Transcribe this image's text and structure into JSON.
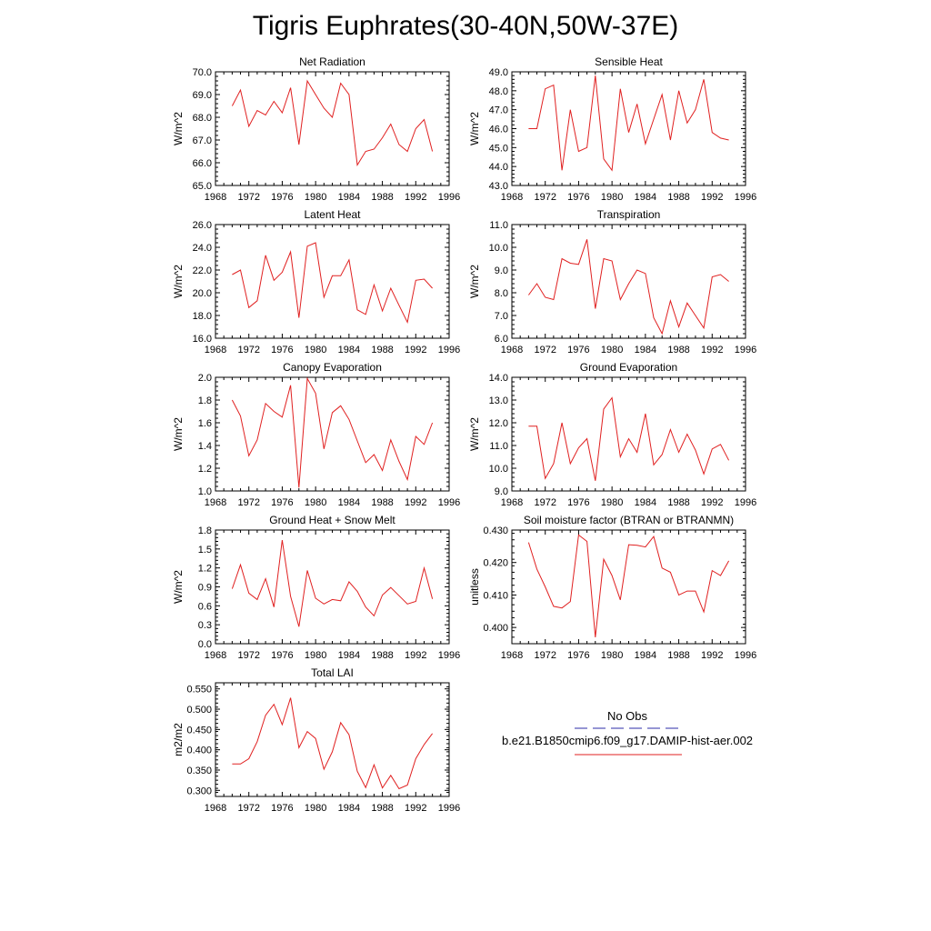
{
  "title": "Tigris Euphrates(30-40N,50W-37E)",
  "legend": {
    "entries": [
      {
        "label": "No Obs",
        "color": "#2e2ea8",
        "dashed": true
      },
      {
        "label": "b.e21.B1850cmip6.f09_g17.DAMIP-hist-aer.002",
        "color": "#e02020",
        "dashed": false
      }
    ]
  },
  "chart_data": [
    {
      "type": "line",
      "title": "Net Radiation",
      "xlabel": "",
      "ylabel": "W/m^2",
      "xlim": [
        1968,
        1996
      ],
      "ylim": [
        65.0,
        70.0
      ],
      "yticks": [
        65.0,
        66.0,
        67.0,
        68.0,
        69.0,
        70.0
      ],
      "ydec": 1,
      "x": [
        1970,
        1971,
        1972,
        1973,
        1974,
        1975,
        1976,
        1977,
        1978,
        1979,
        1980,
        1981,
        1982,
        1983,
        1984,
        1985,
        1986,
        1987,
        1988,
        1989,
        1990,
        1991,
        1992,
        1993,
        1994
      ],
      "series": [
        {
          "color": "#e02020",
          "values": [
            68.5,
            69.2,
            67.6,
            68.3,
            68.1,
            68.7,
            68.2,
            69.3,
            66.8,
            69.6,
            69.0,
            68.4,
            68.0,
            69.5,
            69.0,
            65.9,
            66.5,
            66.6,
            67.1,
            67.7,
            66.8,
            66.5,
            67.5,
            67.9,
            66.5
          ]
        }
      ]
    },
    {
      "type": "line",
      "title": "Sensible Heat",
      "xlabel": "",
      "ylabel": "W/m^2",
      "xlim": [
        1968,
        1996
      ],
      "ylim": [
        43.0,
        49.0
      ],
      "yticks": [
        43.0,
        44.0,
        45.0,
        46.0,
        47.0,
        48.0,
        49.0
      ],
      "ydec": 1,
      "x": [
        1970,
        1971,
        1972,
        1973,
        1974,
        1975,
        1976,
        1977,
        1978,
        1979,
        1980,
        1981,
        1982,
        1983,
        1984,
        1985,
        1986,
        1987,
        1988,
        1989,
        1990,
        1991,
        1992,
        1993,
        1994
      ],
      "series": [
        {
          "color": "#e02020",
          "values": [
            46.0,
            46.0,
            48.1,
            48.3,
            43.8,
            47.0,
            44.8,
            45.0,
            48.8,
            44.4,
            43.8,
            48.1,
            45.8,
            47.3,
            45.2,
            46.5,
            47.8,
            45.4,
            48.0,
            46.3,
            47.0,
            48.6,
            45.8,
            45.5,
            45.4
          ]
        }
      ]
    },
    {
      "type": "line",
      "title": "Latent Heat",
      "xlabel": "",
      "ylabel": "W/m^2",
      "xlim": [
        1968,
        1996
      ],
      "ylim": [
        16.0,
        26.0
      ],
      "yticks": [
        16.0,
        18.0,
        20.0,
        22.0,
        24.0,
        26.0
      ],
      "ydec": 1,
      "x": [
        1970,
        1971,
        1972,
        1973,
        1974,
        1975,
        1976,
        1977,
        1978,
        1979,
        1980,
        1981,
        1982,
        1983,
        1984,
        1985,
        1986,
        1987,
        1988,
        1989,
        1990,
        1991,
        1992,
        1993,
        1994
      ],
      "series": [
        {
          "color": "#e02020",
          "values": [
            21.6,
            22.0,
            18.7,
            19.3,
            23.3,
            21.1,
            21.8,
            23.6,
            17.8,
            24.1,
            24.4,
            19.6,
            21.5,
            21.5,
            22.9,
            18.5,
            18.1,
            20.7,
            18.4,
            20.4,
            18.9,
            17.4,
            21.1,
            21.2,
            20.4
          ]
        }
      ]
    },
    {
      "type": "line",
      "title": "Transpiration",
      "xlabel": "",
      "ylabel": "W/m^2",
      "xlim": [
        1968,
        1996
      ],
      "ylim": [
        6.0,
        11.0
      ],
      "yticks": [
        6.0,
        7.0,
        8.0,
        9.0,
        10.0,
        11.0
      ],
      "ydec": 1,
      "x": [
        1970,
        1971,
        1972,
        1973,
        1974,
        1975,
        1976,
        1977,
        1978,
        1979,
        1980,
        1981,
        1982,
        1983,
        1984,
        1985,
        1986,
        1987,
        1988,
        1989,
        1990,
        1991,
        1992,
        1993,
        1994
      ],
      "series": [
        {
          "color": "#e02020",
          "values": [
            7.9,
            8.4,
            7.8,
            7.7,
            9.5,
            9.3,
            9.25,
            10.35,
            7.3,
            9.5,
            9.4,
            7.7,
            8.4,
            9.0,
            8.85,
            6.9,
            6.2,
            7.65,
            6.5,
            7.55,
            7.0,
            6.45,
            8.7,
            8.8,
            8.5
          ]
        }
      ]
    },
    {
      "type": "line",
      "title": "Canopy Evaporation",
      "xlabel": "",
      "ylabel": "W/m^2",
      "xlim": [
        1968,
        1996
      ],
      "ylim": [
        1.0,
        2.0
      ],
      "yticks": [
        1.0,
        1.2,
        1.4,
        1.6,
        1.8,
        2.0
      ],
      "ydec": 1,
      "x": [
        1970,
        1971,
        1972,
        1973,
        1974,
        1975,
        1976,
        1977,
        1978,
        1979,
        1980,
        1981,
        1982,
        1983,
        1984,
        1985,
        1986,
        1987,
        1988,
        1989,
        1990,
        1991,
        1992,
        1993,
        1994
      ],
      "series": [
        {
          "color": "#e02020",
          "values": [
            1.8,
            1.66,
            1.31,
            1.45,
            1.77,
            1.7,
            1.65,
            1.93,
            1.03,
            1.99,
            1.86,
            1.37,
            1.69,
            1.75,
            1.63,
            1.44,
            1.25,
            1.32,
            1.18,
            1.45,
            1.26,
            1.1,
            1.48,
            1.41,
            1.6
          ]
        }
      ]
    },
    {
      "type": "line",
      "title": "Ground Evaporation",
      "xlabel": "",
      "ylabel": "W/m^2",
      "xlim": [
        1968,
        1996
      ],
      "ylim": [
        9.0,
        14.0
      ],
      "yticks": [
        9.0,
        10.0,
        11.0,
        12.0,
        13.0,
        14.0
      ],
      "ydec": 1,
      "x": [
        1970,
        1971,
        1972,
        1973,
        1974,
        1975,
        1976,
        1977,
        1978,
        1979,
        1980,
        1981,
        1982,
        1983,
        1984,
        1985,
        1986,
        1987,
        1988,
        1989,
        1990,
        1991,
        1992,
        1993,
        1994
      ],
      "series": [
        {
          "color": "#e02020",
          "values": [
            11.85,
            11.85,
            9.55,
            10.2,
            12.0,
            10.2,
            10.9,
            11.3,
            9.45,
            12.6,
            13.1,
            10.5,
            11.3,
            10.7,
            12.4,
            10.15,
            10.6,
            11.7,
            10.7,
            11.5,
            10.8,
            9.75,
            10.85,
            11.05,
            10.35
          ]
        }
      ]
    },
    {
      "type": "line",
      "title": "Ground Heat + Snow Melt",
      "xlabel": "",
      "ylabel": "W/m^2",
      "xlim": [
        1968,
        1996
      ],
      "ylim": [
        0.0,
        1.8
      ],
      "yticks": [
        0.0,
        0.3,
        0.6,
        0.9,
        1.2,
        1.5,
        1.8
      ],
      "ydec": 1,
      "x": [
        1970,
        1971,
        1972,
        1973,
        1974,
        1975,
        1976,
        1977,
        1978,
        1979,
        1980,
        1981,
        1982,
        1983,
        1984,
        1985,
        1986,
        1987,
        1988,
        1989,
        1990,
        1991,
        1992,
        1993,
        1994
      ],
      "series": [
        {
          "color": "#e02020",
          "values": [
            0.87,
            1.25,
            0.8,
            0.7,
            1.03,
            0.58,
            1.64,
            0.75,
            0.27,
            1.16,
            0.72,
            0.63,
            0.7,
            0.68,
            0.98,
            0.83,
            0.58,
            0.44,
            0.77,
            0.89,
            0.76,
            0.63,
            0.67,
            1.2,
            0.71
          ]
        }
      ]
    },
    {
      "type": "line",
      "title": "Soil moisture factor (BTRAN or BTRANMN)",
      "xlabel": "",
      "ylabel": "unitless",
      "xlim": [
        1968,
        1996
      ],
      "ylim": [
        0.395,
        0.43
      ],
      "yticks": [
        0.4,
        0.41,
        0.42,
        0.43
      ],
      "ydec": 3,
      "x": [
        1970,
        1971,
        1972,
        1973,
        1974,
        1975,
        1976,
        1977,
        1978,
        1979,
        1980,
        1981,
        1982,
        1983,
        1984,
        1985,
        1986,
        1987,
        1988,
        1989,
        1990,
        1991,
        1992,
        1993,
        1994
      ],
      "series": [
        {
          "color": "#e02020",
          "values": [
            0.4262,
            0.418,
            0.4125,
            0.4065,
            0.406,
            0.408,
            0.4285,
            0.4265,
            0.397,
            0.421,
            0.416,
            0.4085,
            0.4255,
            0.4253,
            0.4248,
            0.428,
            0.4183,
            0.417,
            0.41,
            0.4112,
            0.4112,
            0.4048,
            0.4175,
            0.416,
            0.4205
          ]
        }
      ]
    },
    {
      "type": "line",
      "title": "Total LAI",
      "xlabel": "",
      "ylabel": "m2/m2",
      "xlim": [
        1968,
        1996
      ],
      "ylim": [
        0.285,
        0.565
      ],
      "yticks": [
        0.3,
        0.35,
        0.4,
        0.45,
        0.5,
        0.55
      ],
      "ydec": 3,
      "x": [
        1970,
        1971,
        1972,
        1973,
        1974,
        1975,
        1976,
        1977,
        1978,
        1979,
        1980,
        1981,
        1982,
        1983,
        1984,
        1985,
        1986,
        1987,
        1988,
        1989,
        1990,
        1991,
        1992,
        1993,
        1994
      ],
      "series": [
        {
          "color": "#e02020",
          "values": [
            0.365,
            0.365,
            0.378,
            0.42,
            0.485,
            0.512,
            0.462,
            0.528,
            0.405,
            0.445,
            0.428,
            0.352,
            0.395,
            0.467,
            0.437,
            0.347,
            0.307,
            0.363,
            0.306,
            0.337,
            0.304,
            0.313,
            0.378,
            0.413,
            0.44
          ]
        }
      ]
    }
  ]
}
